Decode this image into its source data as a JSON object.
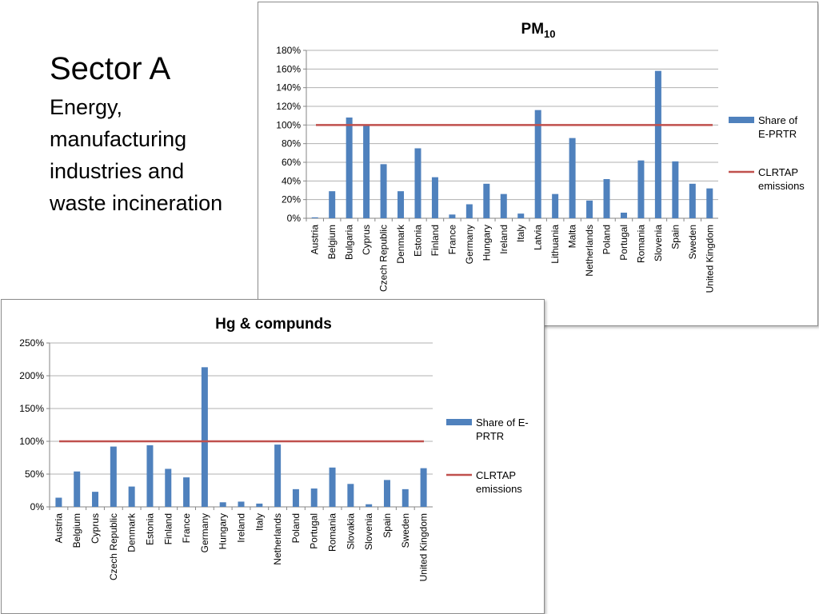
{
  "slide": {
    "title": "Sector A",
    "subtitle_lines": [
      "Energy,",
      "manufacturing",
      "industries and",
      "waste incineration"
    ]
  },
  "colors": {
    "bar": "#4f81bd",
    "line": "#c0504d",
    "grid": "#b0b0b0",
    "axis": "#868686"
  },
  "chart_data": [
    {
      "type": "bar",
      "title": "PM",
      "title_subscript": "10",
      "categories": [
        "Austria",
        "Belgium",
        "Bulgaria",
        "Cyprus",
        "Czech Republic",
        "Denmark",
        "Estonia",
        "Finland",
        "France",
        "Germany",
        "Hungary",
        "Ireland",
        "Italy",
        "Latvia",
        "Lithuania",
        "Malta",
        "Netherlands",
        "Poland",
        "Portugal",
        "Romania",
        "Slovenia",
        "Spain",
        "Sweden",
        "United Kingdom"
      ],
      "series": [
        {
          "name": "Share of E-PRTR",
          "kind": "bar",
          "values": [
            1,
            29,
            108,
            100,
            58,
            29,
            75,
            44,
            4,
            15,
            37,
            26,
            5,
            116,
            26,
            86,
            19,
            42,
            6,
            62,
            158,
            61,
            37,
            32
          ]
        },
        {
          "name": "CLRTAP emissions",
          "kind": "line",
          "values": [
            100,
            100,
            100,
            100,
            100,
            100,
            100,
            100,
            100,
            100,
            100,
            100,
            100,
            100,
            100,
            100,
            100,
            100,
            100,
            100,
            100,
            100,
            100,
            100
          ]
        }
      ],
      "legend_labels": [
        [
          "Share of",
          "E-PRTR"
        ],
        [
          "CLRTAP",
          "emissions"
        ]
      ],
      "ylim": [
        0,
        180
      ],
      "yticks": [
        "0%",
        "20%",
        "40%",
        "60%",
        "80%",
        "100%",
        "120%",
        "140%",
        "160%",
        "180%"
      ],
      "xlabel": "",
      "ylabel": "",
      "grid": true,
      "legend_position": "right"
    },
    {
      "type": "bar",
      "title": "Hg & compunds",
      "title_subscript": "",
      "categories": [
        "Austria",
        "Belgium",
        "Cyprus",
        "Czech Republic",
        "Denmark",
        "Estonia",
        "Finland",
        "France",
        "Germany",
        "Hungary",
        "Ireland",
        "Italy",
        "Netherlands",
        "Poland",
        "Portugal",
        "Romania",
        "Slovakia",
        "Slovenia",
        "Spain",
        "Sweden",
        "United Kingdom"
      ],
      "series": [
        {
          "name": "Share of E-PRTR",
          "kind": "bar",
          "values": [
            14,
            54,
            23,
            92,
            31,
            94,
            58,
            45,
            213,
            7,
            8,
            5,
            95,
            27,
            28,
            60,
            35,
            4,
            41,
            27,
            59
          ]
        },
        {
          "name": "CLRTAP emissions",
          "kind": "line",
          "values": [
            100,
            100,
            100,
            100,
            100,
            100,
            100,
            100,
            100,
            100,
            100,
            100,
            100,
            100,
            100,
            100,
            100,
            100,
            100,
            100,
            100
          ]
        }
      ],
      "legend_labels": [
        [
          "Share of E-",
          "PRTR"
        ],
        [
          "CLRTAP",
          "emissions"
        ]
      ],
      "ylim": [
        0,
        250
      ],
      "yticks": [
        "0%",
        "50%",
        "100%",
        "150%",
        "200%",
        "250%"
      ],
      "xlabel": "",
      "ylabel": "",
      "grid": true,
      "legend_position": "right"
    }
  ]
}
